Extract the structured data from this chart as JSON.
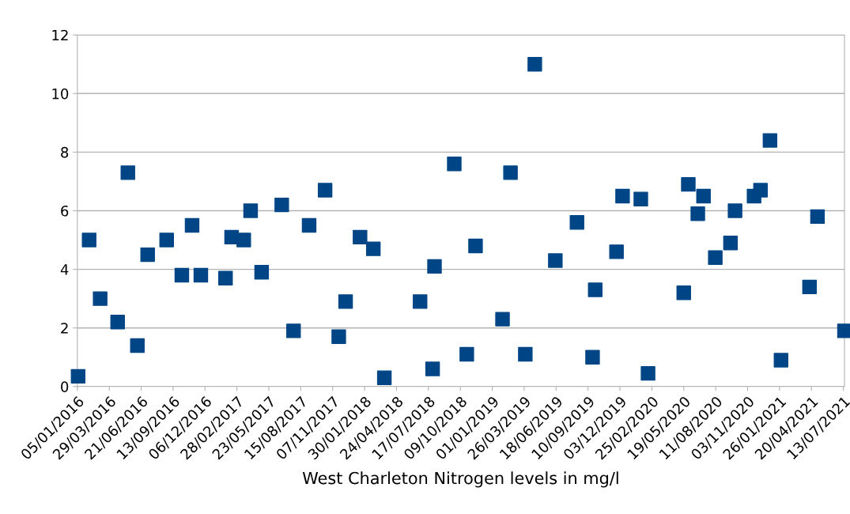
{
  "chart_data": {
    "type": "scatter",
    "xlabel": "West Charleton Nitrogen levels in mg/l",
    "x": [
      "2016-01-07",
      "2016-02-05",
      "2016-03-05",
      "2016-04-20",
      "2016-05-17",
      "2016-06-11",
      "2016-07-08",
      "2016-08-27",
      "2016-10-06",
      "2016-11-02",
      "2016-11-25",
      "2017-01-29",
      "2017-02-14",
      "2017-03-18",
      "2017-04-05",
      "2017-05-04",
      "2017-06-26",
      "2017-07-27",
      "2017-09-06",
      "2017-10-18",
      "2017-11-23",
      "2017-12-11",
      "2018-01-18",
      "2018-02-22",
      "2018-03-23",
      "2018-06-25",
      "2018-07-28",
      "2018-08-02",
      "2018-09-23",
      "2018-10-26",
      "2018-11-18",
      "2019-01-28",
      "2019-02-18",
      "2019-03-29",
      "2019-04-23",
      "2019-06-16",
      "2019-08-12",
      "2019-09-22",
      "2019-09-29",
      "2019-11-24",
      "2019-12-10",
      "2020-01-27",
      "2020-02-15",
      "2020-05-19",
      "2020-05-31",
      "2020-06-25",
      "2020-07-10",
      "2020-08-10",
      "2020-09-19",
      "2020-10-01",
      "2020-11-20",
      "2020-12-07",
      "2021-01-01",
      "2021-01-30",
      "2021-04-15",
      "2021-05-06",
      "2021-07-16"
    ],
    "series": [
      {
        "color": "#004586",
        "values": [
          0.35,
          5.0,
          3.0,
          2.2,
          7.3,
          1.4,
          4.5,
          5.0,
          3.8,
          5.5,
          3.8,
          3.7,
          5.1,
          5.0,
          6.0,
          3.9,
          6.2,
          1.9,
          5.5,
          6.7,
          1.7,
          2.9,
          5.1,
          4.7,
          0.3,
          2.9,
          0.6,
          4.1,
          7.6,
          1.1,
          4.8,
          2.3,
          7.3,
          1.1,
          11.0,
          4.3,
          5.6,
          1.0,
          3.3,
          4.6,
          6.5,
          6.4,
          0.45,
          3.2,
          6.9,
          5.9,
          6.5,
          4.4,
          4.9,
          6.0,
          6.5,
          6.7,
          8.4,
          0.9,
          3.4,
          5.8,
          1.9
        ]
      }
    ],
    "xlim": [
      "2016-01-05",
      "2021-07-16"
    ],
    "xticks": [
      {
        "value": "2016-01-05",
        "label": "05/01/2016"
      },
      {
        "value": "2016-03-29",
        "label": "29/03/2016"
      },
      {
        "value": "2016-06-21",
        "label": "21/06/2016"
      },
      {
        "value": "2016-09-13",
        "label": "13/09/2016"
      },
      {
        "value": "2016-12-06",
        "label": "06/12/2016"
      },
      {
        "value": "2017-02-28",
        "label": "28/02/2017"
      },
      {
        "value": "2017-05-23",
        "label": "23/05/2017"
      },
      {
        "value": "2017-08-15",
        "label": "15/08/2017"
      },
      {
        "value": "2017-11-07",
        "label": "07/11/2017"
      },
      {
        "value": "2018-01-30",
        "label": "30/01/2018"
      },
      {
        "value": "2018-04-24",
        "label": "24/04/2018"
      },
      {
        "value": "2018-07-17",
        "label": "17/07/2018"
      },
      {
        "value": "2018-10-09",
        "label": "09/10/2018"
      },
      {
        "value": "2019-01-01",
        "label": "01/01/2019"
      },
      {
        "value": "2019-03-26",
        "label": "26/03/2019"
      },
      {
        "value": "2019-06-18",
        "label": "18/06/2019"
      },
      {
        "value": "2019-09-10",
        "label": "10/09/2019"
      },
      {
        "value": "2019-12-03",
        "label": "03/12/2019"
      },
      {
        "value": "2020-02-25",
        "label": "25/02/2020"
      },
      {
        "value": "2020-05-19",
        "label": "19/05/2020"
      },
      {
        "value": "2020-08-11",
        "label": "11/08/2020"
      },
      {
        "value": "2020-11-03",
        "label": "03/11/2020"
      },
      {
        "value": "2021-01-26",
        "label": "26/01/2021"
      },
      {
        "value": "2021-04-20",
        "label": "20/04/2021"
      },
      {
        "value": "2021-07-13",
        "label": "13/07/2021"
      }
    ],
    "ylim": [
      0,
      12
    ],
    "yticks": [
      0,
      2,
      4,
      6,
      8,
      10,
      12
    ],
    "grid": "y",
    "marker": "square",
    "legend": false
  }
}
